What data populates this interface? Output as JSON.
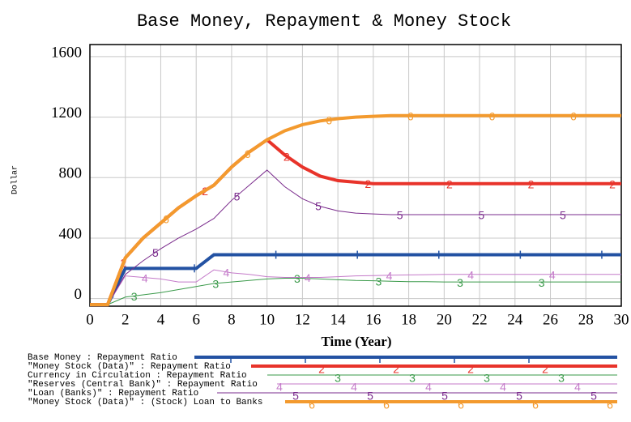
{
  "chart_data": {
    "type": "line",
    "title": "Base Money, Repayment & Money Stock",
    "x_label": "Time (Year)",
    "y_label": "Dollar",
    "x": [
      0,
      1,
      2,
      3,
      4,
      5,
      6,
      7,
      8,
      9,
      10,
      11,
      12,
      13,
      14,
      15,
      16,
      17,
      18,
      19,
      20,
      21,
      22,
      23,
      24,
      25,
      26,
      27,
      28,
      29,
      30
    ],
    "xlim": [
      0,
      30
    ],
    "xticks": [
      0,
      2,
      4,
      6,
      8,
      10,
      12,
      14,
      16,
      18,
      20,
      22,
      24,
      26,
      28,
      30
    ],
    "ylim": [
      -50,
      1680
    ],
    "yticks": [
      0,
      400,
      800,
      1200,
      1600
    ],
    "grid": true,
    "series": [
      {
        "name": "Base Money : Repayment Ratio",
        "color": "#2352a3",
        "width": 4,
        "values": [
          -40,
          -40,
          200,
          200,
          200,
          200,
          200,
          290,
          290,
          290,
          290,
          290,
          290,
          290,
          290,
          290,
          290,
          290,
          290,
          290,
          290,
          290,
          290,
          290,
          290,
          290,
          290,
          290,
          290,
          290,
          290
        ]
      },
      {
        "name": "\"Money Stock (Data)\" : Repayment Ratio",
        "color": "#e8332a",
        "width": 4,
        "marker": "2",
        "values": [
          -40,
          -40,
          270,
          400,
          500,
          600,
          680,
          750,
          870,
          970,
          1050,
          950,
          870,
          810,
          780,
          770,
          760,
          760,
          760,
          760,
          760,
          760,
          760,
          760,
          760,
          760,
          760,
          760,
          760,
          760,
          760
        ]
      },
      {
        "name": "Currency in Circulation : Repayment Ratio",
        "color": "#3a9a4a",
        "width": 1,
        "marker": "3",
        "values": [
          -40,
          -40,
          10,
          25,
          40,
          60,
          80,
          100,
          110,
          120,
          130,
          135,
          135,
          130,
          125,
          120,
          118,
          115,
          112,
          112,
          110,
          110,
          110,
          110,
          110,
          110,
          110,
          110,
          110,
          110,
          110
        ]
      },
      {
        "name": "\"Reserves (Central Bank)\" : Repayment Ratio",
        "color": "#c47ac9",
        "width": 1,
        "marker": "4",
        "values": [
          -40,
          -40,
          150,
          140,
          130,
          110,
          110,
          190,
          170,
          160,
          145,
          140,
          140,
          140,
          145,
          150,
          152,
          155,
          157,
          158,
          160,
          160,
          160,
          160,
          160,
          160,
          160,
          160,
          160,
          160,
          160
        ]
      },
      {
        "name": "\"Loan (Banks)\" : Repayment Ratio",
        "color": "#7a2b8c",
        "width": 1,
        "marker": "5",
        "values": [
          -40,
          -40,
          160,
          250,
          330,
          400,
          460,
          530,
          650,
          750,
          850,
          740,
          660,
          610,
          580,
          565,
          560,
          555,
          555,
          555,
          555,
          555,
          555,
          555,
          555,
          555,
          555,
          555,
          555,
          555,
          555
        ]
      },
      {
        "name": "\"Money Stock (Data)\" : (Stock) Loan to Banks",
        "color": "#f39a2e",
        "width": 4,
        "marker": "6",
        "values": [
          -40,
          -40,
          270,
          400,
          500,
          600,
          680,
          750,
          870,
          970,
          1050,
          1110,
          1150,
          1175,
          1190,
          1200,
          1205,
          1210,
          1210,
          1210,
          1210,
          1210,
          1210,
          1210,
          1210,
          1210,
          1210,
          1210,
          1210,
          1210,
          1210
        ]
      }
    ]
  }
}
